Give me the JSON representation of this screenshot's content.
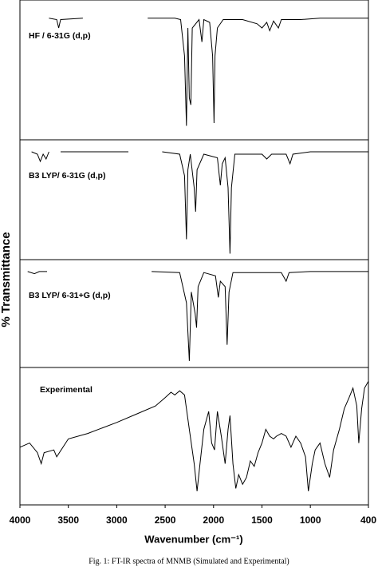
{
  "chart_data": {
    "type": "line",
    "xlabel": "Wavenumber (cm⁻¹)",
    "ylabel": "% Transmittance",
    "caption": "Fig. 1: FT-IR spectra of MNMB (Simulated and Experimental)",
    "xlim": [
      4000,
      400
    ],
    "xticks": [
      4000,
      3500,
      3000,
      2500,
      2000,
      1500,
      1000,
      400
    ],
    "ylim": [
      0,
      100
    ],
    "color": "#000000",
    "series": [
      {
        "name": "HF / 6-31G (d,p)",
        "x": [
          3700,
          3620,
          3600,
          3580,
          3350,
          3000,
          2680,
          2400,
          2340,
          2300,
          2280,
          2265,
          2250,
          2235,
          2220,
          2150,
          2120,
          2100,
          2040,
          2010,
          1995,
          1985,
          1960,
          1900,
          1700,
          1550,
          1500,
          1450,
          1420,
          1380,
          1330,
          1300,
          1100,
          900,
          400
        ],
        "values": [
          87,
          86,
          80,
          86,
          87,
          null,
          87,
          87,
          86,
          60,
          10,
          80,
          30,
          25,
          80,
          86,
          70,
          86,
          84,
          60,
          12,
          60,
          80,
          86,
          86,
          83,
          80,
          84,
          78,
          85,
          80,
          86,
          86,
          87,
          87
        ]
      },
      {
        "name": "B3 LYP/ 6-31G (d,p)",
        "x": [
          3880,
          3820,
          3790,
          3760,
          3730,
          3700,
          3640,
          3580,
          2880,
          2700,
          2530,
          2350,
          2300,
          2280,
          2265,
          2240,
          2200,
          2185,
          2170,
          2100,
          1960,
          1930,
          1910,
          1880,
          1850,
          1830,
          1815,
          1780,
          1500,
          1450,
          1400,
          1250,
          1210,
          1180,
          1000,
          800,
          400
        ],
        "values": [
          90,
          88,
          82,
          88,
          84,
          90,
          null,
          90,
          90,
          null,
          90,
          88,
          70,
          17,
          75,
          88,
          60,
          40,
          75,
          88,
          85,
          62,
          80,
          85,
          60,
          5,
          60,
          88,
          88,
          84,
          88,
          88,
          80,
          88,
          90,
          90,
          90
        ]
      },
      {
        "name": "B3 LYP/ 6-31+G (d,p)",
        "x": [
          3920,
          3850,
          3800,
          3720,
          3200,
          2640,
          2350,
          2280,
          2250,
          2230,
          2190,
          2175,
          2160,
          2100,
          1980,
          1950,
          1930,
          1880,
          1860,
          1840,
          1800,
          1500,
          1300,
          1250,
          1220,
          1000,
          400
        ],
        "values": [
          89,
          87,
          89,
          89,
          null,
          89,
          88,
          60,
          6,
          70,
          50,
          37,
          75,
          88,
          85,
          65,
          80,
          75,
          21,
          70,
          88,
          88,
          88,
          80,
          88,
          89,
          89
        ]
      },
      {
        "name": "Experimental",
        "x": [
          4000,
          3900,
          3820,
          3780,
          3750,
          3650,
          3620,
          3500,
          3300,
          3000,
          2800,
          2600,
          2500,
          2440,
          2400,
          2350,
          2300,
          2250,
          2200,
          2170,
          2140,
          2100,
          2050,
          2020,
          1990,
          1960,
          1920,
          1880,
          1850,
          1830,
          1800,
          1770,
          1740,
          1700,
          1660,
          1620,
          1580,
          1540,
          1500,
          1460,
          1420,
          1380,
          1350,
          1300,
          1250,
          1200,
          1150,
          1100,
          1050,
          1020,
          980,
          950,
          900,
          850,
          800,
          760,
          700,
          650,
          600,
          560,
          520,
          500,
          470,
          440,
          400
        ],
        "values": [
          42,
          45,
          38,
          30,
          38,
          40,
          35,
          48,
          52,
          60,
          66,
          72,
          78,
          82,
          80,
          83,
          80,
          55,
          30,
          10,
          30,
          55,
          68,
          45,
          40,
          68,
          50,
          30,
          55,
          65,
          30,
          12,
          22,
          15,
          20,
          32,
          28,
          38,
          45,
          55,
          50,
          48,
          50,
          52,
          50,
          42,
          50,
          45,
          35,
          10,
          30,
          40,
          45,
          30,
          20,
          40,
          55,
          70,
          78,
          85,
          72,
          45,
          70,
          85,
          90
        ]
      }
    ]
  }
}
